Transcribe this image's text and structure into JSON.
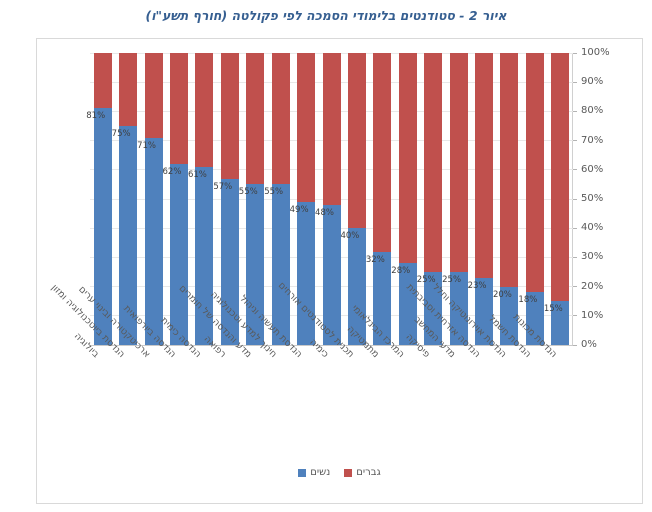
{
  "title": "איור 2 - סטודנטים בלימודי הסמכה לפי פקולטה (חורף תשע\"ו)",
  "chart_data": {
    "type": "bar",
    "stacked": true,
    "orientation": "vertical",
    "title": "איור 2 - סטודנטים בלימודי הסמכה לפי פקולטה (חורף תשע\"ו)",
    "categories": [
      "ביולוגיה",
      "הנדסת ביוטכנולוגיה ומזון",
      "ארכיטקטורה ובינוי ערים",
      "הנדסה ביורפואית",
      "הנדסה כימית",
      "רפואה",
      "מדע והנדסה של חומרים",
      "חינוך למדע וטכנולוגיה",
      "הנדסת תעשיה וניהול",
      "כימיה",
      "תכנית לסטודנטים אורחים",
      "מתמטיקה",
      "המרכז הבינלאומי",
      "פיסיקה",
      "מדעי המחשב",
      "הנדסה אזרחית וסביבתית",
      "הנדסת אוירונוטיקה וחלל",
      "הנדסת חשמל",
      "הנדסת מכונות"
    ],
    "series": [
      {
        "name": "נשים",
        "color": "#4f81bd",
        "values": [
          81,
          75,
          71,
          62,
          61,
          57,
          55,
          55,
          49,
          48,
          40,
          32,
          28,
          25,
          25,
          23,
          20,
          18,
          15
        ]
      },
      {
        "name": "גברים",
        "color": "#c0504d",
        "values": [
          19,
          25,
          29,
          38,
          39,
          43,
          45,
          45,
          51,
          52,
          60,
          68,
          72,
          75,
          75,
          77,
          80,
          82,
          85
        ]
      }
    ],
    "value_labels": [
      "81%",
      "75%",
      "71%",
      "62%",
      "61%",
      "57%",
      "55%",
      "55%",
      "49%",
      "48%",
      "40%",
      "32%",
      "28%",
      "25%",
      "25%",
      "23%",
      "20%",
      "18%",
      "15%"
    ],
    "value_labels_series": "נשים",
    "ylim": [
      0,
      100
    ],
    "y_ticks": [
      "0%",
      "10%",
      "20%",
      "30%",
      "40%",
      "50%",
      "60%",
      "70%",
      "80%",
      "90%",
      "100%"
    ],
    "axis_side": "right",
    "grid": true,
    "legend_position": "bottom"
  },
  "legend": {
    "items": [
      {
        "label": "נשים",
        "color": "#4f81bd"
      },
      {
        "label": "גברים",
        "color": "#c0504d"
      }
    ]
  },
  "colors": {
    "women": "#4f81bd",
    "men": "#c0504d",
    "title": "#365f91",
    "axis_text": "#595959",
    "value_label_text": "#3f3f3f",
    "gridline": "#e8e8e8",
    "frame_border": "#d9d9d9"
  }
}
